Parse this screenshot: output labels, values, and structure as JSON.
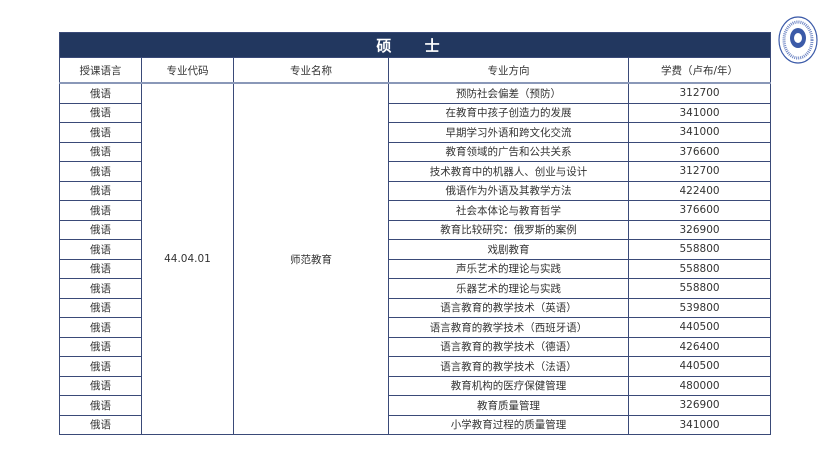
{
  "title": "硕 士",
  "headers": [
    "授课语言",
    "专业代码",
    "专业名称",
    "专业方向",
    "学费（卢布/年）"
  ],
  "code": "44.04.01",
  "program": "师范教育",
  "rows": [
    {
      "lang": "俄语",
      "dir": "预防社会偏差（预防）",
      "fee": "312700"
    },
    {
      "lang": "俄语",
      "dir": "在教育中孩子创造力的发展",
      "fee": "341000"
    },
    {
      "lang": "俄语",
      "dir": "早期学习外语和跨文化交流",
      "fee": "341000"
    },
    {
      "lang": "俄语",
      "dir": "教育领域的广告和公共关系",
      "fee": "376600"
    },
    {
      "lang": "俄语",
      "dir": "技术教育中的机器人、创业与设计",
      "fee": "312700"
    },
    {
      "lang": "俄语",
      "dir": "俄语作为外语及其教学方法",
      "fee": "422400"
    },
    {
      "lang": "俄语",
      "dir": "社会本体论与教育哲学",
      "fee": "376600"
    },
    {
      "lang": "俄语",
      "dir": "教育比较研究：俄罗斯的案例",
      "fee": "326900"
    },
    {
      "lang": "俄语",
      "dir": "戏剧教育",
      "fee": "558800"
    },
    {
      "lang": "俄语",
      "dir": "声乐艺术的理论与实践",
      "fee": "558800"
    },
    {
      "lang": "俄语",
      "dir": "乐器艺术的理论与实践",
      "fee": "558800"
    },
    {
      "lang": "俄语",
      "dir": "语言教育的教学技术（英语）",
      "fee": "539800"
    },
    {
      "lang": "俄语",
      "dir": "语言教育的教学技术（西班牙语）",
      "fee": "440500"
    },
    {
      "lang": "俄语",
      "dir": "语言教育的教学技术（德语）",
      "fee": "426400"
    },
    {
      "lang": "俄语",
      "dir": "语言教育的教学技术（法语）",
      "fee": "440500"
    },
    {
      "lang": "俄语",
      "dir": "教育机构的医疗保健管理",
      "fee": "480000"
    },
    {
      "lang": "俄语",
      "dir": "教育质量管理",
      "fee": "326900"
    },
    {
      "lang": "俄语",
      "dir": "小学教育过程的质量管理",
      "fee": "341000"
    }
  ],
  "logo_text": "1797",
  "colors": {
    "header_bg": "#22375f",
    "border": "#3a4a78"
  }
}
